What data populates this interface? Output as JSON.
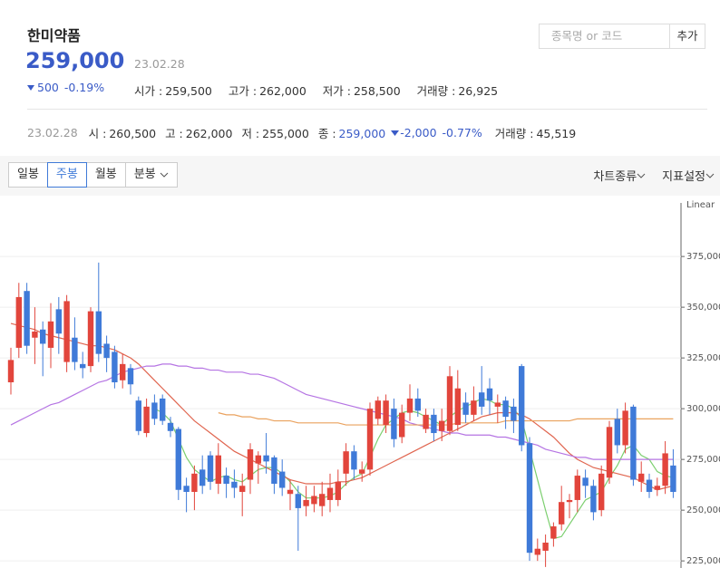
{
  "header": {
    "name": "한미약품",
    "price": "259,000",
    "date": "23.02.28",
    "change": "500",
    "change_rate": "-0.19%",
    "stats": [
      {
        "label": "시가 :",
        "value": "259,500"
      },
      {
        "label": "고가 :",
        "value": "262,000"
      },
      {
        "label": "저가 :",
        "value": "258,500"
      },
      {
        "label": "거래량 :",
        "value": "26,925"
      }
    ]
  },
  "search": {
    "placeholder": "종목명 or 코드",
    "button": "추가"
  },
  "daily": {
    "date": "23.02.28",
    "stats": [
      {
        "label": "시 :",
        "value": "260,500"
      },
      {
        "label": "고 :",
        "value": "262,000"
      },
      {
        "label": "저 :",
        "value": "255,000"
      },
      {
        "label": "종 :",
        "value": "259,000"
      }
    ],
    "change": "-2,000",
    "change_rate": "-0.77%",
    "volume": {
      "label": "거래량 :",
      "value": "45,519"
    }
  },
  "toolbar": {
    "periods": [
      "일봉",
      "주봉",
      "월봉",
      "분봉"
    ],
    "selected_period": 1,
    "menus": [
      "차트종류",
      "지표설정"
    ]
  },
  "chart_data": {
    "type": "candlestick",
    "scale_label": "Linear",
    "up_color": "#e2453c",
    "down_color": "#3f7ad8",
    "grid": true,
    "ylim": [
      221500,
      400500
    ],
    "yticks": [
      {
        "value": 225000,
        "label": "225,000"
      },
      {
        "value": 250000,
        "label": "250,000"
      },
      {
        "value": 275000,
        "label": "275,000"
      },
      {
        "value": 300000,
        "label": "300,000"
      },
      {
        "value": 325000,
        "label": "325,000"
      },
      {
        "value": 350000,
        "label": "350,000"
      },
      {
        "value": 375000,
        "label": "375,000"
      }
    ],
    "open": [
      313000,
      330000,
      358000,
      335000,
      339000,
      330000,
      349000,
      323000,
      335000,
      322000,
      321000,
      348000,
      332000,
      328000,
      314000,
      320000,
      304000,
      288000,
      303000,
      305000,
      293000,
      290000,
      262000,
      259000,
      270000,
      277000,
      263000,
      267000,
      264000,
      259000,
      265000,
      273000,
      277000,
      276000,
      269000,
      258000,
      258000,
      252000,
      253000,
      252000,
      255000,
      255000,
      268000,
      279000,
      268000,
      270000,
      295000,
      292000,
      300000,
      286000,
      298000,
      305000,
      290000,
      297000,
      289000,
      289000,
      292000,
      303000,
      297000,
      308000,
      310000,
      301000,
      304000,
      301000,
      321000,
      283000,
      228000,
      230000,
      236000,
      243000,
      254000,
      255000,
      266000,
      262000,
      250000,
      266000,
      295000,
      282000,
      301000,
      264000,
      265000,
      260000,
      262000,
      272000
    ],
    "close": [
      324000,
      355000,
      331000,
      338000,
      332000,
      343000,
      337000,
      353000,
      323000,
      320000,
      348000,
      327000,
      325000,
      313000,
      322000,
      312000,
      289000,
      301000,
      295000,
      294000,
      289000,
      260000,
      259000,
      268000,
      262000,
      264000,
      277000,
      263000,
      261000,
      262000,
      280000,
      277000,
      274000,
      263000,
      261000,
      260000,
      251000,
      255000,
      257000,
      258000,
      261000,
      264000,
      279000,
      270000,
      270000,
      300000,
      304000,
      304000,
      285000,
      298000,
      305000,
      299000,
      297000,
      288000,
      294000,
      316000,
      310000,
      297000,
      304000,
      301000,
      304000,
      303000,
      296000,
      294000,
      282000,
      229000,
      231000,
      234000,
      242000,
      254000,
      255000,
      267000,
      262000,
      249000,
      268000,
      291000,
      282000,
      299000,
      265000,
      268000,
      259000,
      262000,
      278000,
      259000
    ],
    "high": [
      330000,
      362000,
      362000,
      350000,
      343000,
      352000,
      355000,
      356000,
      345000,
      328000,
      350000,
      372000,
      336000,
      331000,
      327000,
      322000,
      306000,
      305000,
      307000,
      307000,
      296000,
      291000,
      266000,
      272000,
      277000,
      279000,
      283000,
      271000,
      270000,
      268000,
      283000,
      279000,
      288000,
      277000,
      275000,
      265000,
      262000,
      262000,
      262000,
      264000,
      268000,
      270000,
      283000,
      282000,
      274000,
      303000,
      306000,
      307000,
      305000,
      302000,
      312000,
      310000,
      300000,
      300000,
      300000,
      321000,
      319000,
      308000,
      311000,
      321000,
      315000,
      307000,
      306000,
      305000,
      322000,
      286000,
      236000,
      238000,
      244000,
      262000,
      258000,
      270000,
      270000,
      265000,
      272000,
      294000,
      300000,
      303000,
      302000,
      274000,
      268000,
      266000,
      284000,
      280000
    ],
    "low": [
      307000,
      325000,
      327000,
      322000,
      316000,
      320000,
      327000,
      318000,
      319000,
      315000,
      318000,
      323000,
      318000,
      310000,
      310000,
      307000,
      287000,
      286000,
      292000,
      292000,
      286000,
      255000,
      249000,
      250000,
      258000,
      260000,
      258000,
      256000,
      256000,
      247000,
      258000,
      263000,
      268000,
      258000,
      257000,
      250000,
      230000,
      247000,
      249000,
      247000,
      249000,
      252000,
      262000,
      265000,
      264000,
      267000,
      292000,
      288000,
      281000,
      283000,
      294000,
      296000,
      288000,
      284000,
      284000,
      287000,
      289000,
      293000,
      294000,
      297000,
      297000,
      293000,
      290000,
      288000,
      279000,
      225000,
      225000,
      222000,
      232000,
      240000,
      246000,
      249000,
      256000,
      245000,
      247000,
      263000,
      278000,
      278000,
      262000,
      259000,
      256000,
      257000,
      258000,
      256000
    ],
    "lines": [
      {
        "color": "#7ccf6f",
        "values": [
          null,
          null,
          null,
          null,
          null,
          null,
          null,
          null,
          null,
          null,
          null,
          null,
          null,
          null,
          null,
          null,
          null,
          null,
          300000,
          298000,
          294000,
          285000,
          276000,
          270000,
          267000,
          264000,
          266000,
          267000,
          265000,
          264000,
          267000,
          270000,
          271000,
          271000,
          268000,
          264000,
          259000,
          256000,
          256000,
          256000,
          257000,
          259000,
          263000,
          266000,
          268000,
          276000,
          285000,
          292000,
          295000,
          298000,
          299000,
          298000,
          296000,
          294000,
          292000,
          296000,
          299000,
          301000,
          303000,
          305000,
          304000,
          302000,
          302000,
          300000,
          295000,
          280000,
          265000,
          250000,
          236000,
          237000,
          243000,
          249000,
          255000,
          257000,
          259000,
          266000,
          272000,
          280000,
          282000,
          277000,
          275000,
          269000,
          267000,
          266000
        ]
      },
      {
        "color": "#e0654f",
        "values": [
          342000,
          341000,
          340000,
          339000,
          337000,
          336000,
          335000,
          334000,
          333000,
          332000,
          331000,
          331000,
          330000,
          329000,
          327000,
          325000,
          322000,
          318000,
          314000,
          310000,
          306000,
          302000,
          298000,
          294000,
          291000,
          288000,
          285000,
          282000,
          279000,
          277000,
          275000,
          273000,
          271000,
          269000,
          267000,
          265000,
          264000,
          263000,
          263000,
          263000,
          263000,
          264000,
          264000,
          265000,
          266000,
          268000,
          270000,
          272000,
          274000,
          276000,
          278000,
          280000,
          282000,
          284000,
          286000,
          288000,
          290000,
          292000,
          294000,
          296000,
          297000,
          298000,
          298000,
          298000,
          297000,
          295000,
          292000,
          289000,
          286000,
          282000,
          278000,
          275000,
          273000,
          271000,
          270000,
          269000,
          268000,
          267000,
          266000,
          264000,
          262000,
          260000,
          261000,
          262000
        ]
      },
      {
        "color": "#b574e3",
        "values": [
          292000,
          294000,
          296000,
          298000,
          300000,
          302000,
          303000,
          305000,
          307000,
          309000,
          311000,
          313000,
          314000,
          316000,
          318000,
          319000,
          320000,
          321000,
          321000,
          322000,
          322000,
          321000,
          321000,
          320000,
          320000,
          319000,
          319000,
          318000,
          318000,
          318000,
          317000,
          317000,
          316000,
          315000,
          313000,
          311000,
          309000,
          307000,
          306000,
          305000,
          304000,
          303000,
          302000,
          301000,
          300000,
          299000,
          298000,
          297000,
          296000,
          295000,
          293000,
          292000,
          291000,
          290000,
          289000,
          288000,
          288000,
          287000,
          287000,
          287000,
          287000,
          286000,
          286000,
          285000,
          284000,
          283000,
          282000,
          280000,
          279000,
          278000,
          277000,
          276000,
          276000,
          275000,
          275000,
          275000,
          275000,
          275000,
          275000,
          275000,
          275000,
          275000,
          275000,
          275000
        ]
      },
      {
        "color": "#eaa25e",
        "values": [
          null,
          null,
          null,
          null,
          null,
          null,
          null,
          null,
          null,
          null,
          null,
          null,
          null,
          null,
          null,
          null,
          null,
          null,
          null,
          null,
          null,
          null,
          null,
          null,
          null,
          null,
          298000,
          297000,
          297000,
          296000,
          296000,
          295000,
          295000,
          294000,
          294000,
          294000,
          293000,
          293000,
          293000,
          293000,
          293000,
          293000,
          292000,
          292000,
          292000,
          292000,
          292000,
          292000,
          292000,
          292000,
          292000,
          292000,
          292000,
          292000,
          292000,
          292000,
          293000,
          293000,
          293000,
          293000,
          293000,
          293000,
          294000,
          294000,
          294000,
          294000,
          294000,
          294000,
          294000,
          294000,
          294000,
          295000,
          295000,
          295000,
          295000,
          295000,
          295000,
          295000,
          295000,
          295000,
          295000,
          295000,
          295000,
          295000
        ]
      }
    ]
  }
}
